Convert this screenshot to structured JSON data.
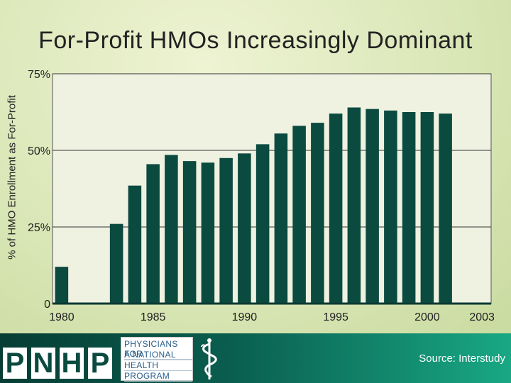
{
  "chart_data": {
    "type": "bar",
    "title": "For-Profit HMOs Increasingly Dominant",
    "ylabel": "% of HMO Enrollment as For-Profit",
    "xlabel": "",
    "ylim": [
      0,
      75
    ],
    "yticks": [
      "0",
      "25%",
      "50%",
      "75%"
    ],
    "ytick_values": [
      0,
      25,
      50,
      75
    ],
    "xtick_labels": [
      {
        "year": 1980,
        "label": "1980"
      },
      {
        "year": 1985,
        "label": "1985"
      },
      {
        "year": 1990,
        "label": "1990"
      },
      {
        "year": 1995,
        "label": "1995"
      },
      {
        "year": 2000,
        "label": "2000"
      },
      {
        "year": 2003,
        "label": "2003"
      }
    ],
    "categories": [
      1980,
      1981,
      1982,
      1983,
      1984,
      1985,
      1986,
      1987,
      1988,
      1989,
      1990,
      1991,
      1992,
      1993,
      1994,
      1995,
      1996,
      1997,
      1998,
      1999,
      2000,
      2001,
      2002,
      2003
    ],
    "values": [
      12,
      null,
      null,
      26,
      38.5,
      45.5,
      48.5,
      46.5,
      46,
      47.5,
      49,
      52,
      55.5,
      58,
      59,
      62,
      64,
      63.5,
      63,
      62.5,
      62.5,
      62,
      null,
      null
    ],
    "grid": true,
    "legend": "none",
    "bar_color": "#0b4a3f",
    "plot_color": "#eff1e1"
  },
  "footer": {
    "logo_letters": [
      "P",
      "N",
      "H",
      "P"
    ],
    "logo_text": [
      "PHYSICIANS FOR",
      "A NATIONAL",
      "HEALTH",
      "PROGRAM"
    ],
    "source": "Source: Interstudy"
  }
}
